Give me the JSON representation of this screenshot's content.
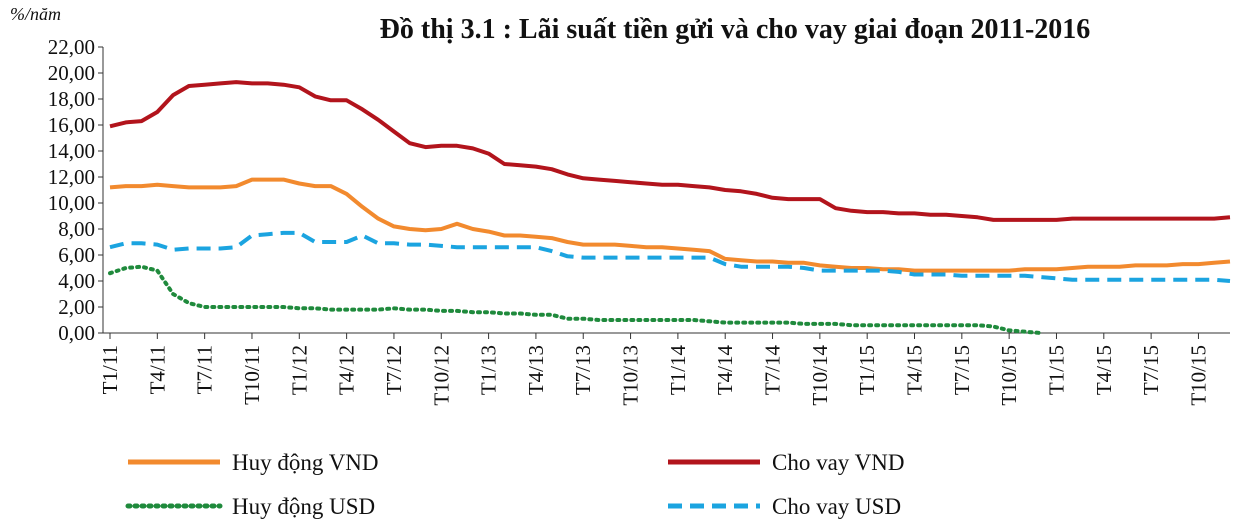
{
  "chart_data": {
    "type": "line",
    "title": "Đồ thị 3.1 : Lãi suất tiền gửi và cho vay giai đoạn 2011-2016",
    "y_axis_label": "%/năm",
    "categories": [
      "T1/11",
      null,
      null,
      "T4/11",
      null,
      null,
      "T7/11",
      null,
      null,
      "T10/11",
      null,
      null,
      "T1/12",
      null,
      null,
      "T4/12",
      null,
      null,
      "T7/12",
      null,
      null,
      "T10/12",
      null,
      null,
      "T1/13",
      null,
      null,
      "T4/13",
      null,
      null,
      "T7/13",
      null,
      null,
      "T10/13",
      null,
      null,
      "T1/14",
      null,
      null,
      "T4/14",
      null,
      null,
      "T7/14",
      null,
      null,
      "T10/14",
      null,
      null,
      "T1/15",
      null,
      null,
      "T4/15",
      null,
      null,
      "T7/15",
      null,
      null,
      "T10/15",
      null,
      null,
      "T1/15",
      null,
      null,
      "T4/15",
      null,
      null,
      "T7/15",
      null,
      null,
      "T10/15",
      null,
      null
    ],
    "ylim": [
      0,
      22
    ],
    "yticks": [
      {
        "value": 0,
        "label": "0,00"
      },
      {
        "value": 2,
        "label": "2,00"
      },
      {
        "value": 4,
        "label": "4,00"
      },
      {
        "value": 6,
        "label": "6,00"
      },
      {
        "value": 8,
        "label": "8,00"
      },
      {
        "value": 10,
        "label": "10,00"
      },
      {
        "value": 12,
        "label": "12,00"
      },
      {
        "value": 14,
        "label": "14,00"
      },
      {
        "value": 16,
        "label": "16,00"
      },
      {
        "value": 18,
        "label": "18,00"
      },
      {
        "value": 20,
        "label": "20,00"
      },
      {
        "value": 22,
        "label": "22,00"
      }
    ],
    "grid": false,
    "legend": "bottom",
    "series": [
      {
        "name": "Huy động VND",
        "color": "#f28a2e",
        "dash": "solid",
        "values": [
          11.2,
          11.3,
          11.3,
          11.4,
          11.3,
          11.2,
          11.2,
          11.2,
          11.3,
          11.8,
          11.8,
          11.8,
          11.5,
          11.3,
          11.3,
          10.7,
          9.7,
          8.8,
          8.2,
          8.0,
          7.9,
          8.0,
          8.4,
          8.0,
          7.8,
          7.5,
          7.5,
          7.4,
          7.3,
          7.0,
          6.8,
          6.8,
          6.8,
          6.7,
          6.6,
          6.6,
          6.5,
          6.4,
          6.3,
          5.7,
          5.6,
          5.5,
          5.5,
          5.4,
          5.4,
          5.2,
          5.1,
          5.0,
          5.0,
          4.9,
          4.9,
          4.8,
          4.8,
          4.8,
          4.8,
          4.8,
          4.8,
          4.8,
          4.9,
          4.9,
          4.9,
          5.0,
          5.1,
          5.1,
          5.1,
          5.2,
          5.2,
          5.2,
          5.3,
          5.3,
          5.4,
          5.5
        ]
      },
      {
        "name": "Cho vay VND",
        "color": "#b2141c",
        "dash": "solid",
        "values": [
          15.9,
          16.2,
          16.3,
          17.0,
          18.3,
          19.0,
          19.1,
          19.2,
          19.3,
          19.2,
          19.2,
          19.1,
          18.9,
          18.2,
          17.9,
          17.9,
          17.2,
          16.4,
          15.5,
          14.6,
          14.3,
          14.4,
          14.4,
          14.2,
          13.8,
          13.0,
          12.9,
          12.8,
          12.6,
          12.2,
          11.9,
          11.8,
          11.7,
          11.6,
          11.5,
          11.4,
          11.4,
          11.3,
          11.2,
          11.0,
          10.9,
          10.7,
          10.4,
          10.3,
          10.3,
          10.3,
          9.6,
          9.4,
          9.3,
          9.3,
          9.2,
          9.2,
          9.1,
          9.1,
          9.0,
          8.9,
          8.7,
          8.7,
          8.7,
          8.7,
          8.7,
          8.8,
          8.8,
          8.8,
          8.8,
          8.8,
          8.8,
          8.8,
          8.8,
          8.8,
          8.8,
          8.9
        ]
      },
      {
        "name": "Huy động USD",
        "color": "#1f8a3c",
        "dash": "dotted",
        "values": [
          4.6,
          5.0,
          5.1,
          4.8,
          3.0,
          2.3,
          2.0,
          2.0,
          2.0,
          2.0,
          2.0,
          2.0,
          1.9,
          1.9,
          1.8,
          1.8,
          1.8,
          1.8,
          1.9,
          1.8,
          1.8,
          1.7,
          1.7,
          1.6,
          1.6,
          1.5,
          1.5,
          1.4,
          1.4,
          1.1,
          1.1,
          1.0,
          1.0,
          1.0,
          1.0,
          1.0,
          1.0,
          1.0,
          0.9,
          0.8,
          0.8,
          0.8,
          0.8,
          0.8,
          0.7,
          0.7,
          0.7,
          0.6,
          0.6,
          0.6,
          0.6,
          0.6,
          0.6,
          0.6,
          0.6,
          0.6,
          0.5,
          0.2,
          0.1,
          0.0,
          null,
          null,
          null,
          null,
          null,
          null,
          null,
          null,
          null,
          null,
          null,
          null
        ]
      },
      {
        "name": "Cho vay USD",
        "color": "#1ba4e0",
        "dash": "dashed",
        "values": [
          6.6,
          6.9,
          6.9,
          6.8,
          6.4,
          6.5,
          6.5,
          6.5,
          6.6,
          7.5,
          7.6,
          7.7,
          7.7,
          7.0,
          7.0,
          7.0,
          7.5,
          6.9,
          6.9,
          6.8,
          6.8,
          6.7,
          6.6,
          6.6,
          6.6,
          6.6,
          6.6,
          6.6,
          6.3,
          5.9,
          5.8,
          5.8,
          5.8,
          5.8,
          5.8,
          5.8,
          5.8,
          5.8,
          5.8,
          5.3,
          5.1,
          5.1,
          5.1,
          5.1,
          5.0,
          4.8,
          4.8,
          4.8,
          4.8,
          4.8,
          4.7,
          4.5,
          4.5,
          4.5,
          4.4,
          4.4,
          4.4,
          4.4,
          4.4,
          4.3,
          4.2,
          4.1,
          4.1,
          4.1,
          4.1,
          4.1,
          4.1,
          4.1,
          4.1,
          4.1,
          4.1,
          4.0
        ]
      }
    ]
  }
}
